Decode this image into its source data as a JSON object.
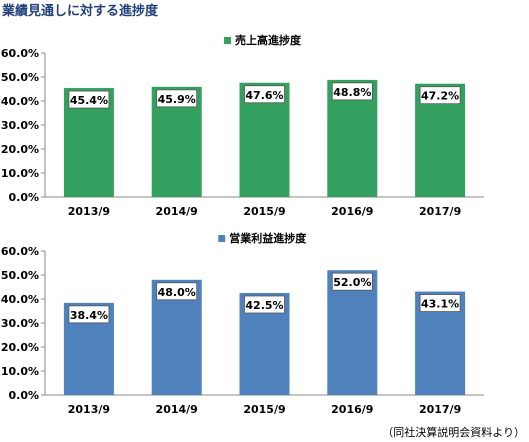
{
  "page": {
    "title": "業績見通しに対する進捗度",
    "source": "（同社決算説明会資料より）"
  },
  "chart_data": [
    {
      "type": "bar",
      "legend": "売上高進捗度",
      "legend_position": "top-center",
      "color": "#33a060",
      "categories": [
        "2013/9",
        "2014/9",
        "2015/9",
        "2016/9",
        "2017/9"
      ],
      "values": [
        45.4,
        45.9,
        47.6,
        48.8,
        47.2
      ],
      "value_labels": [
        "45.4%",
        "45.9%",
        "47.6%",
        "48.8%",
        "47.2%"
      ],
      "ylim": [
        0,
        60
      ],
      "yticks": [
        "0.0%",
        "10.0%",
        "20.0%",
        "30.0%",
        "40.0%",
        "50.0%",
        "60.0%"
      ],
      "grid": false
    },
    {
      "type": "bar",
      "legend": "営業利益進捗度",
      "legend_position": "top-center",
      "color": "#4f81bd",
      "categories": [
        "2013/9",
        "2014/9",
        "2015/9",
        "2016/9",
        "2017/9"
      ],
      "values": [
        38.4,
        48.0,
        42.5,
        52.0,
        43.1
      ],
      "value_labels": [
        "38.4%",
        "48.0%",
        "42.5%",
        "52.0%",
        "43.1%"
      ],
      "ylim": [
        0,
        60
      ],
      "yticks": [
        "0.0%",
        "10.0%",
        "20.0%",
        "30.0%",
        "40.0%",
        "50.0%",
        "60.0%"
      ],
      "grid": false
    }
  ]
}
